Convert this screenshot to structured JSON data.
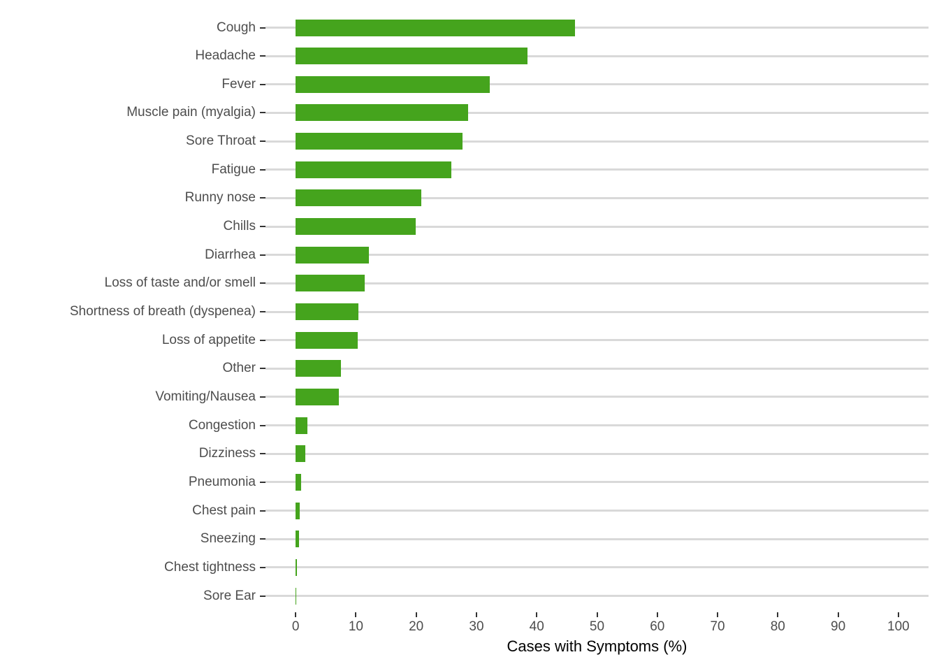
{
  "chart_data": {
    "type": "bar",
    "orientation": "horizontal",
    "title": "",
    "xlabel": "Cases with Symptoms (%)",
    "ylabel": "",
    "xlim": [
      0,
      100
    ],
    "x_ticks": [
      0,
      10,
      20,
      30,
      40,
      50,
      60,
      70,
      80,
      90,
      100
    ],
    "grid": "horizontal-only",
    "legend": "none",
    "categories": [
      "Cough",
      "Headache",
      "Fever",
      "Muscle pain (myalgia)",
      "Sore Throat",
      "Fatigue",
      "Runny nose",
      "Chills",
      "Diarrhea",
      "Loss of taste and/or smell",
      "Shortness of breath (dyspenea)",
      "Loss of appetite",
      "Other",
      "Vomiting/Nausea",
      "Congestion",
      "Dizziness",
      "Pneumonia",
      "Chest pain",
      "Sneezing",
      "Chest tightness",
      "Sore Ear"
    ],
    "values": [
      46.4,
      38.5,
      32.2,
      28.6,
      27.7,
      25.8,
      20.9,
      19.9,
      12.1,
      11.5,
      10.4,
      10.3,
      7.5,
      7.2,
      2.0,
      1.6,
      0.9,
      0.7,
      0.6,
      0.25,
      0.1
    ]
  },
  "colors": {
    "bar": "#45a41d",
    "gridline": "#d9d9d9",
    "axis_text": "#4d4d4d",
    "axis_tick": "#333333",
    "axis_title": "#000000",
    "background": "#ffffff"
  }
}
